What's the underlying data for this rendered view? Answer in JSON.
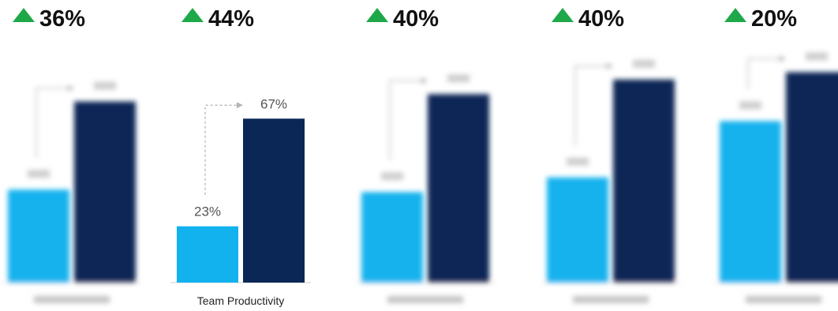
{
  "colors": {
    "before": "#12b2ee",
    "after": "#0b2756",
    "increase_arrow": "#1fa84a",
    "connector": "#b5b5b5"
  },
  "chart_data": {
    "type": "bar",
    "ylim": [
      0,
      100
    ],
    "grid": false,
    "legend": "none",
    "groups": [
      {
        "category": "",
        "delta": "36%",
        "before": 38,
        "after": 74,
        "before_label": "",
        "after_label": "",
        "blurred": true
      },
      {
        "category": "Team Productivity",
        "delta": "44%",
        "before": 23,
        "after": 67,
        "before_label": "23%",
        "after_label": "67%",
        "blurred": false
      },
      {
        "category": "",
        "delta": "40%",
        "before": 37,
        "after": 77,
        "before_label": "",
        "after_label": "",
        "blurred": true
      },
      {
        "category": "",
        "delta": "40%",
        "before": 43,
        "after": 83,
        "before_label": "",
        "after_label": "",
        "blurred": true
      },
      {
        "category": "",
        "delta": "20%",
        "before": 66,
        "after": 86,
        "before_label": "",
        "after_label": "",
        "blurred": true
      }
    ]
  }
}
